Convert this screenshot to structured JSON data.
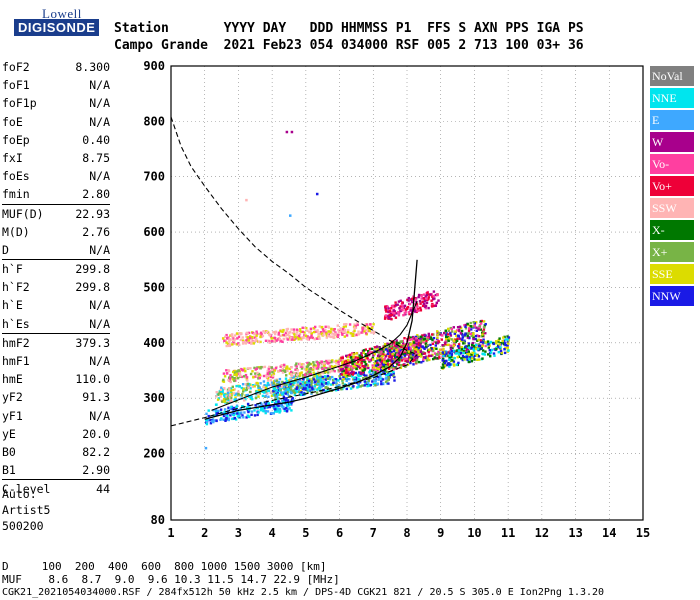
{
  "logo": {
    "brand": "Lowell",
    "product": "DIGISONDE"
  },
  "header": {
    "row1": "Station       YYYY DAY   DDD HHMMSS P1  FFS S AXN PPS IGA PS",
    "row2": "Campo Grande  2021 Feb23 054 034000 RSF 005 2 713 100 03+ 36"
  },
  "params": [
    {
      "name": "foF2",
      "value": "8.300"
    },
    {
      "name": "foF1",
      "value": "N/A"
    },
    {
      "name": "foF1p",
      "value": "N/A"
    },
    {
      "name": "foE",
      "value": "N/A"
    },
    {
      "name": "foEp",
      "value": "0.40"
    },
    {
      "name": "fxI",
      "value": "8.75"
    },
    {
      "name": "foEs",
      "value": "N/A"
    },
    {
      "name": "fmin",
      "value": "2.80"
    },
    {
      "name": "MUF(D)",
      "value": "22.93",
      "sep": true
    },
    {
      "name": "M(D)",
      "value": "2.76"
    },
    {
      "name": "D",
      "value": "N/A"
    },
    {
      "name": "h`F",
      "value": "299.8",
      "sep": true
    },
    {
      "name": "h`F2",
      "value": "299.8"
    },
    {
      "name": "h`E",
      "value": "N/A"
    },
    {
      "name": "h`Es",
      "value": "N/A"
    },
    {
      "name": "hmF2",
      "value": "379.3",
      "sep": true
    },
    {
      "name": "hmF1",
      "value": "N/A"
    },
    {
      "name": "hmE",
      "value": "110.0"
    },
    {
      "name": "yF2",
      "value": "91.3"
    },
    {
      "name": "yF1",
      "value": "N/A"
    },
    {
      "name": "yE",
      "value": "20.0"
    },
    {
      "name": "B0",
      "value": "82.2"
    },
    {
      "name": "B1",
      "value": "2.90"
    },
    {
      "name": "C-level",
      "value": "44",
      "sep": true
    }
  ],
  "auto": {
    "line1": "Auto:",
    "line2": "Artist5",
    "line3": "500200"
  },
  "legend": [
    {
      "label": "NoVal",
      "color": "#808080"
    },
    {
      "label": "NNE",
      "color": "#00e5ee"
    },
    {
      "label": "E",
      "color": "#3ea8ff"
    },
    {
      "label": "W",
      "color": "#a8008c"
    },
    {
      "label": "Vo-",
      "color": "#ff3fa0"
    },
    {
      "label": "Vo+",
      "color": "#ee0038"
    },
    {
      "label": "SSW",
      "color": "#ffb4b4"
    },
    {
      "label": "X-",
      "color": "#007800"
    },
    {
      "label": "X+",
      "color": "#78b446"
    },
    {
      "label": "SSE",
      "color": "#dcdc00"
    },
    {
      "label": "NNW",
      "color": "#1a1ae6"
    }
  ],
  "bottom": {
    "distance_line": "D     100  200  400  600  800 1000 1500 3000 [km]",
    "muf_line": "MUF    8.6  8.7  9.0  9.6 10.3 11.5 14.7 22.9 [MHz]",
    "footer": "CGK21_2021054034000.RSF / 284fx512h 50 kHz 2.5 km / DPS-4D CGK21 821 / 20.5 S 305.0 E Ion2Png 1.3.20"
  },
  "chart_data": {
    "type": "scatter",
    "xlim": [
      1,
      15
    ],
    "ylim": [
      80,
      900
    ],
    "xticks": [
      1,
      2,
      3,
      4,
      5,
      6,
      7,
      8,
      9,
      10,
      11,
      12,
      13,
      14,
      15
    ],
    "yticks": [
      80,
      200,
      300,
      400,
      500,
      600,
      700,
      800,
      900
    ],
    "grid": true,
    "legend_position": "right",
    "trace_ordinary": {
      "x": [
        2.0,
        2.5,
        3.0,
        3.5,
        4.0,
        4.5,
        5.0,
        5.5,
        6.0,
        6.5,
        7.0,
        7.5,
        7.8,
        8.0,
        8.15,
        8.3
      ],
      "y": [
        262,
        270,
        278,
        283,
        288,
        293,
        300,
        309,
        318,
        328,
        341,
        357,
        375,
        400,
        440,
        550
      ]
    },
    "trace_extraordinary": {
      "x": [
        2.2,
        3.0,
        4.0,
        5.0,
        6.0,
        6.5,
        7.0,
        7.5,
        7.8,
        8.0,
        8.3
      ],
      "y": [
        278,
        297,
        320,
        338,
        358,
        368,
        382,
        398,
        415,
        432,
        475
      ]
    },
    "profile": {
      "x": [
        1.0,
        1.3,
        1.6,
        2.0,
        2.5,
        3.0,
        3.5,
        4.0,
        4.5,
        5.0,
        5.5,
        6.0,
        6.5,
        7.0,
        7.5,
        8.0,
        8.3
      ],
      "y": [
        808,
        755,
        718,
        683,
        642,
        606,
        573,
        547,
        525,
        500,
        480,
        459,
        440,
        422,
        404,
        386,
        379
      ]
    },
    "lower_profile": {
      "x": [
        1.0,
        2.0,
        3.0,
        4.0,
        5.0,
        6.0,
        7.0,
        8.0,
        8.3
      ],
      "y": [
        250,
        265,
        282,
        296,
        308,
        321,
        337,
        360,
        379
      ]
    },
    "clusters": [
      {
        "x": [
          2.0,
          4.6
        ],
        "y": [
          255,
          305
        ],
        "colors": [
          "#3ea8ff",
          "#00e5ee",
          "#1a1ae6"
        ]
      },
      {
        "x": [
          2.3,
          5.5
        ],
        "y": [
          290,
          350
        ],
        "colors": [
          "#00e5ee",
          "#ffb4b4",
          "#dcdc00",
          "#3ea8ff",
          "#78b446"
        ]
      },
      {
        "x": [
          2.5,
          6.5
        ],
        "y": [
          330,
          375
        ],
        "colors": [
          "#ffb4b4",
          "#dcdc00",
          "#78b446",
          "#ff3fa0"
        ]
      },
      {
        "x": [
          2.5,
          7.0
        ],
        "y": [
          395,
          440
        ],
        "colors": [
          "#ffb4b4",
          "#ffb4b4",
          "#dcdc00",
          "#ff3fa0"
        ]
      },
      {
        "x": [
          4.0,
          7.6
        ],
        "y": [
          300,
          360
        ],
        "colors": [
          "#3ea8ff",
          "#00e5ee",
          "#78b446",
          "#1a1ae6"
        ]
      },
      {
        "x": [
          6.0,
          8.4
        ],
        "y": [
          335,
          420
        ],
        "colors": [
          "#ee0038",
          "#a8008c",
          "#ff3fa0",
          "#dcdc00",
          "#007800"
        ]
      },
      {
        "x": [
          7.0,
          10.3
        ],
        "y": [
          345,
          445
        ],
        "colors": [
          "#ee0038",
          "#a8008c",
          "#007800",
          "#dcdc00",
          "#78b446",
          "#1a1ae6",
          "#ff3fa0"
        ]
      },
      {
        "x": [
          9.0,
          11.0
        ],
        "y": [
          355,
          415
        ],
        "colors": [
          "#1a1ae6",
          "#dcdc00",
          "#007800",
          "#00e5ee"
        ]
      },
      {
        "x": [
          7.3,
          8.9
        ],
        "y": [
          440,
          500
        ],
        "colors": [
          "#ee0038",
          "#ff3fa0",
          "#a8008c"
        ]
      }
    ]
  }
}
